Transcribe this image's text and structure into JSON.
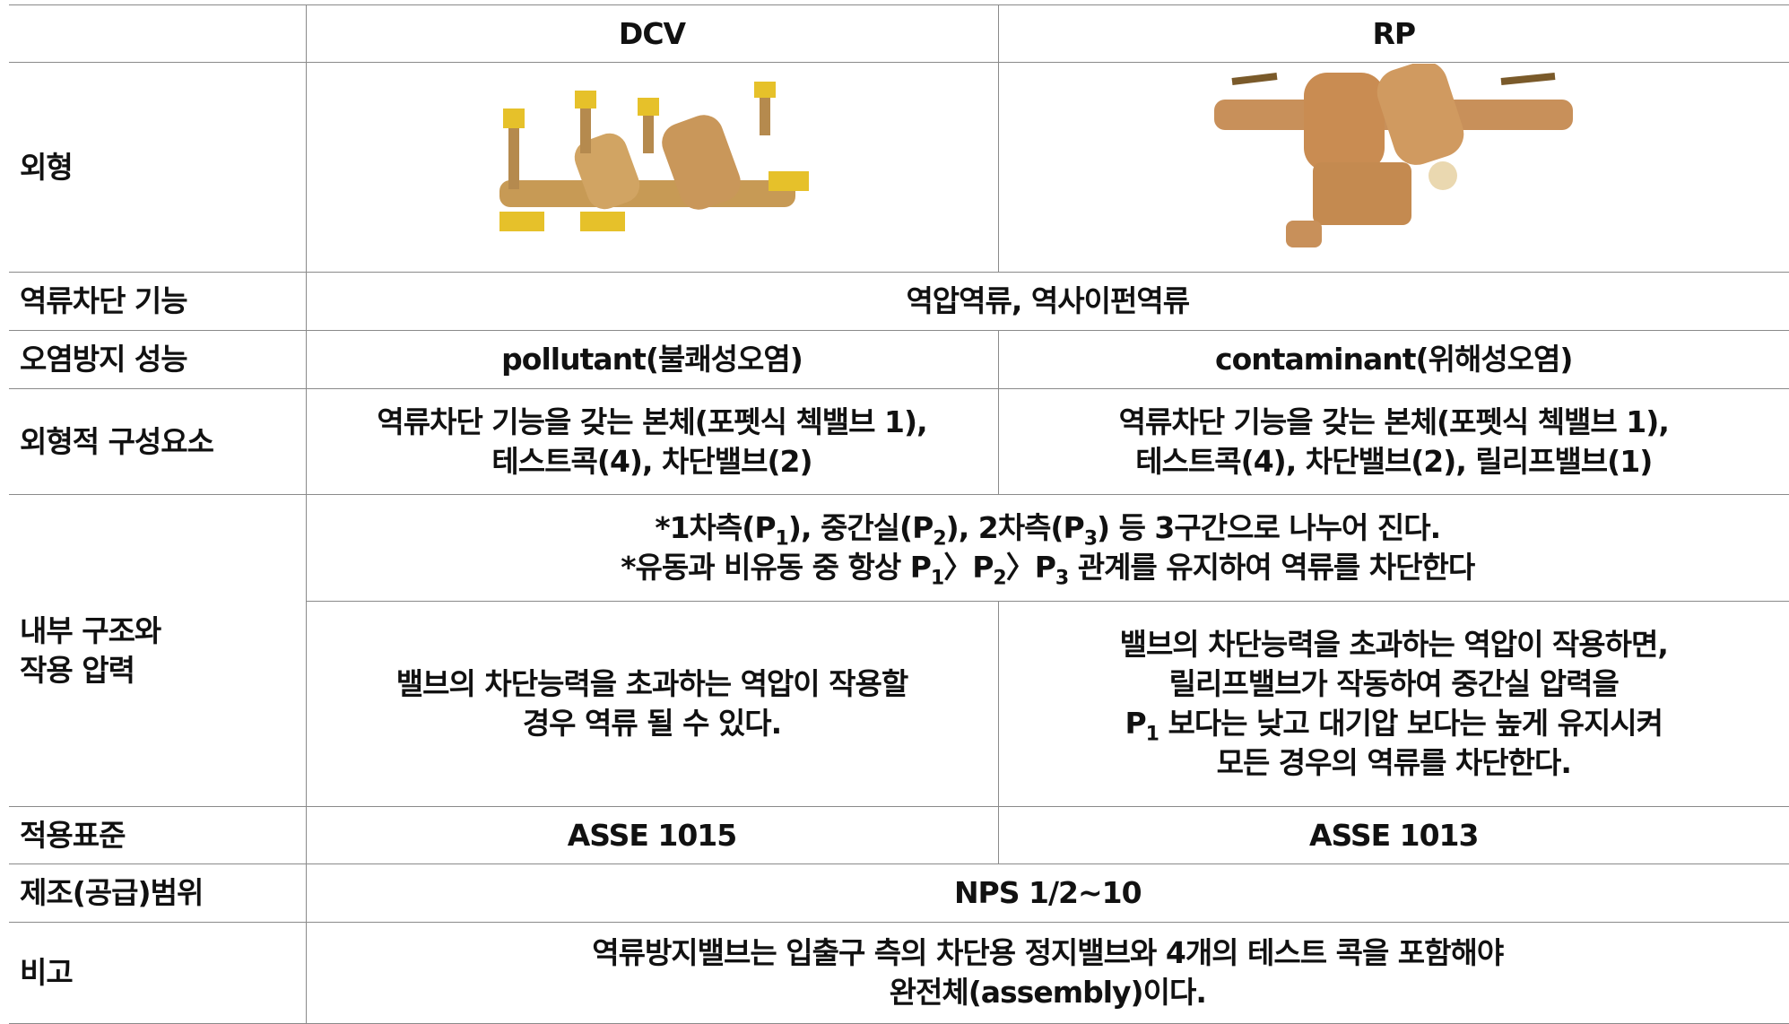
{
  "table": {
    "columns": [
      "DCV",
      "RP"
    ],
    "rows": [
      {
        "label": [
          "외형"
        ]
      },
      {
        "label": [
          "역류차단 기능"
        ],
        "merged": [
          "역압역류, 역사이펀역류"
        ]
      },
      {
        "label": [
          "오염방지 성능"
        ],
        "cells": [
          [
            "pollutant(불쾌성오염)"
          ],
          [
            "contaminant(위해성오염)"
          ]
        ]
      },
      {
        "label": [
          "외형적 구성요소"
        ],
        "cells": [
          [
            "역류차단 기능을 갖는 본체(포펫식 첵밸브 1),",
            "테스트콕(4), 차단밸브(2)"
          ],
          [
            "역류차단 기능을 갖는 본체(포펫식 첵밸브 1),",
            "테스트콕(4), 차단밸브(2), 릴리프밸브(1)"
          ]
        ]
      },
      {
        "label": [
          "내부 구조와",
          "작용 압력"
        ],
        "merged": [
          [
            "*1차측(P",
            {
              "sub": "1"
            },
            "), 중간실(P",
            {
              "sub": "2"
            },
            "), 2차측(P",
            {
              "sub": "3"
            },
            ") 등 3구간으로 나누어 진다."
          ],
          [
            "*유동과 비유동 중 항상 P",
            {
              "sub": "1"
            },
            "〉P",
            {
              "sub": "2"
            },
            "〉P",
            {
              "sub": "3"
            },
            " 관계를 유지하여 역류를 차단한다"
          ]
        ],
        "cells": [
          [
            "밸브의 차단능력을 초과하는 역압이 작용할",
            "경우 역류 될 수 있다."
          ],
          [
            "밸브의 차단능력을 초과하는 역압이 작용하면,",
            "릴리프밸브가 작동하여 중간실 압력을",
            [
              "P",
              {
                "sub": "1"
              },
              " 보다는 낮고 대기압 보다는 높게 유지시켜"
            ],
            "모든 경우의 역류를 차단한다."
          ]
        ]
      },
      {
        "label": [
          "적용표준"
        ],
        "cells": [
          [
            "ASSE 1015"
          ],
          [
            "ASSE 1013"
          ]
        ]
      },
      {
        "label": [
          "제조(공급)범위"
        ],
        "merged": [
          "NPS 1/2~10"
        ]
      },
      {
        "label": [
          "비고"
        ],
        "merged": [
          "역류방지밸브는 입출구 측의 차단용 정지밸브와 4개의 테스트 콕을 포함해야",
          "완전체(assembly)이다."
        ]
      }
    ]
  }
}
